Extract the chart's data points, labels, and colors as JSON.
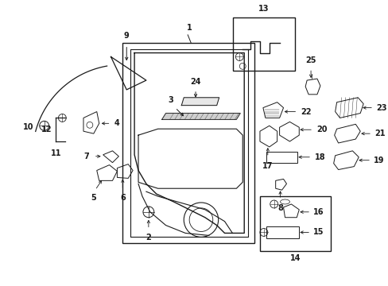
{
  "bg_color": "#ffffff",
  "fig_width": 4.89,
  "fig_height": 3.6,
  "dpi": 100,
  "lc": "#1a1a1a",
  "lw": 0.8,
  "fs": 7.0,
  "fw": "bold"
}
